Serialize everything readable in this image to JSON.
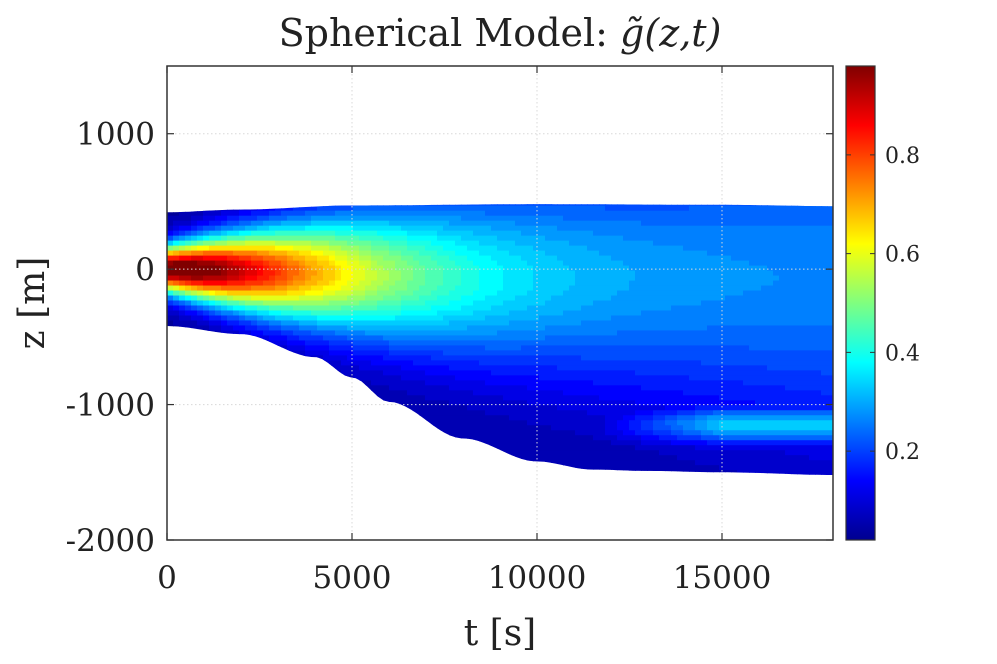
{
  "chart_data": {
    "type": "heatmap",
    "title": "Spherical Model: ",
    "title_math": "g̃(z,t)",
    "xlabel": "t [s]",
    "ylabel": "z [m]",
    "xlim": [
      0,
      18000
    ],
    "ylim": [
      -2000,
      1500
    ],
    "xticks": [
      0,
      5000,
      10000,
      15000
    ],
    "xtick_labels": [
      "0",
      "5000",
      "10000",
      "15000"
    ],
    "yticks": [
      -2000,
      -1000,
      0,
      1000
    ],
    "ytick_labels": [
      "-2000",
      "-1000",
      "0",
      "1000"
    ],
    "grid": true,
    "colormap": "jet",
    "colorbar": {
      "range": [
        0.02,
        0.98
      ],
      "ticks": [
        0.2,
        0.4,
        0.6,
        0.8
      ],
      "tick_labels": [
        "0.2",
        "0.4",
        "0.6",
        "0.8"
      ],
      "placement": "right"
    },
    "upper_boundary": {
      "t": [
        0,
        2000,
        5000,
        10000,
        15000,
        18000
      ],
      "z": [
        420,
        440,
        470,
        480,
        475,
        465
      ]
    },
    "lower_boundary": {
      "t": [
        0,
        2000,
        4000,
        5000,
        6000,
        8000,
        10000,
        11500,
        13000,
        15000,
        18000
      ],
      "z": [
        -420,
        -480,
        -650,
        -800,
        -980,
        -1250,
        -1420,
        -1480,
        -1490,
        -1500,
        -1520
      ]
    },
    "peak": {
      "t": 1500,
      "z": 0,
      "value": 0.98
    }
  }
}
